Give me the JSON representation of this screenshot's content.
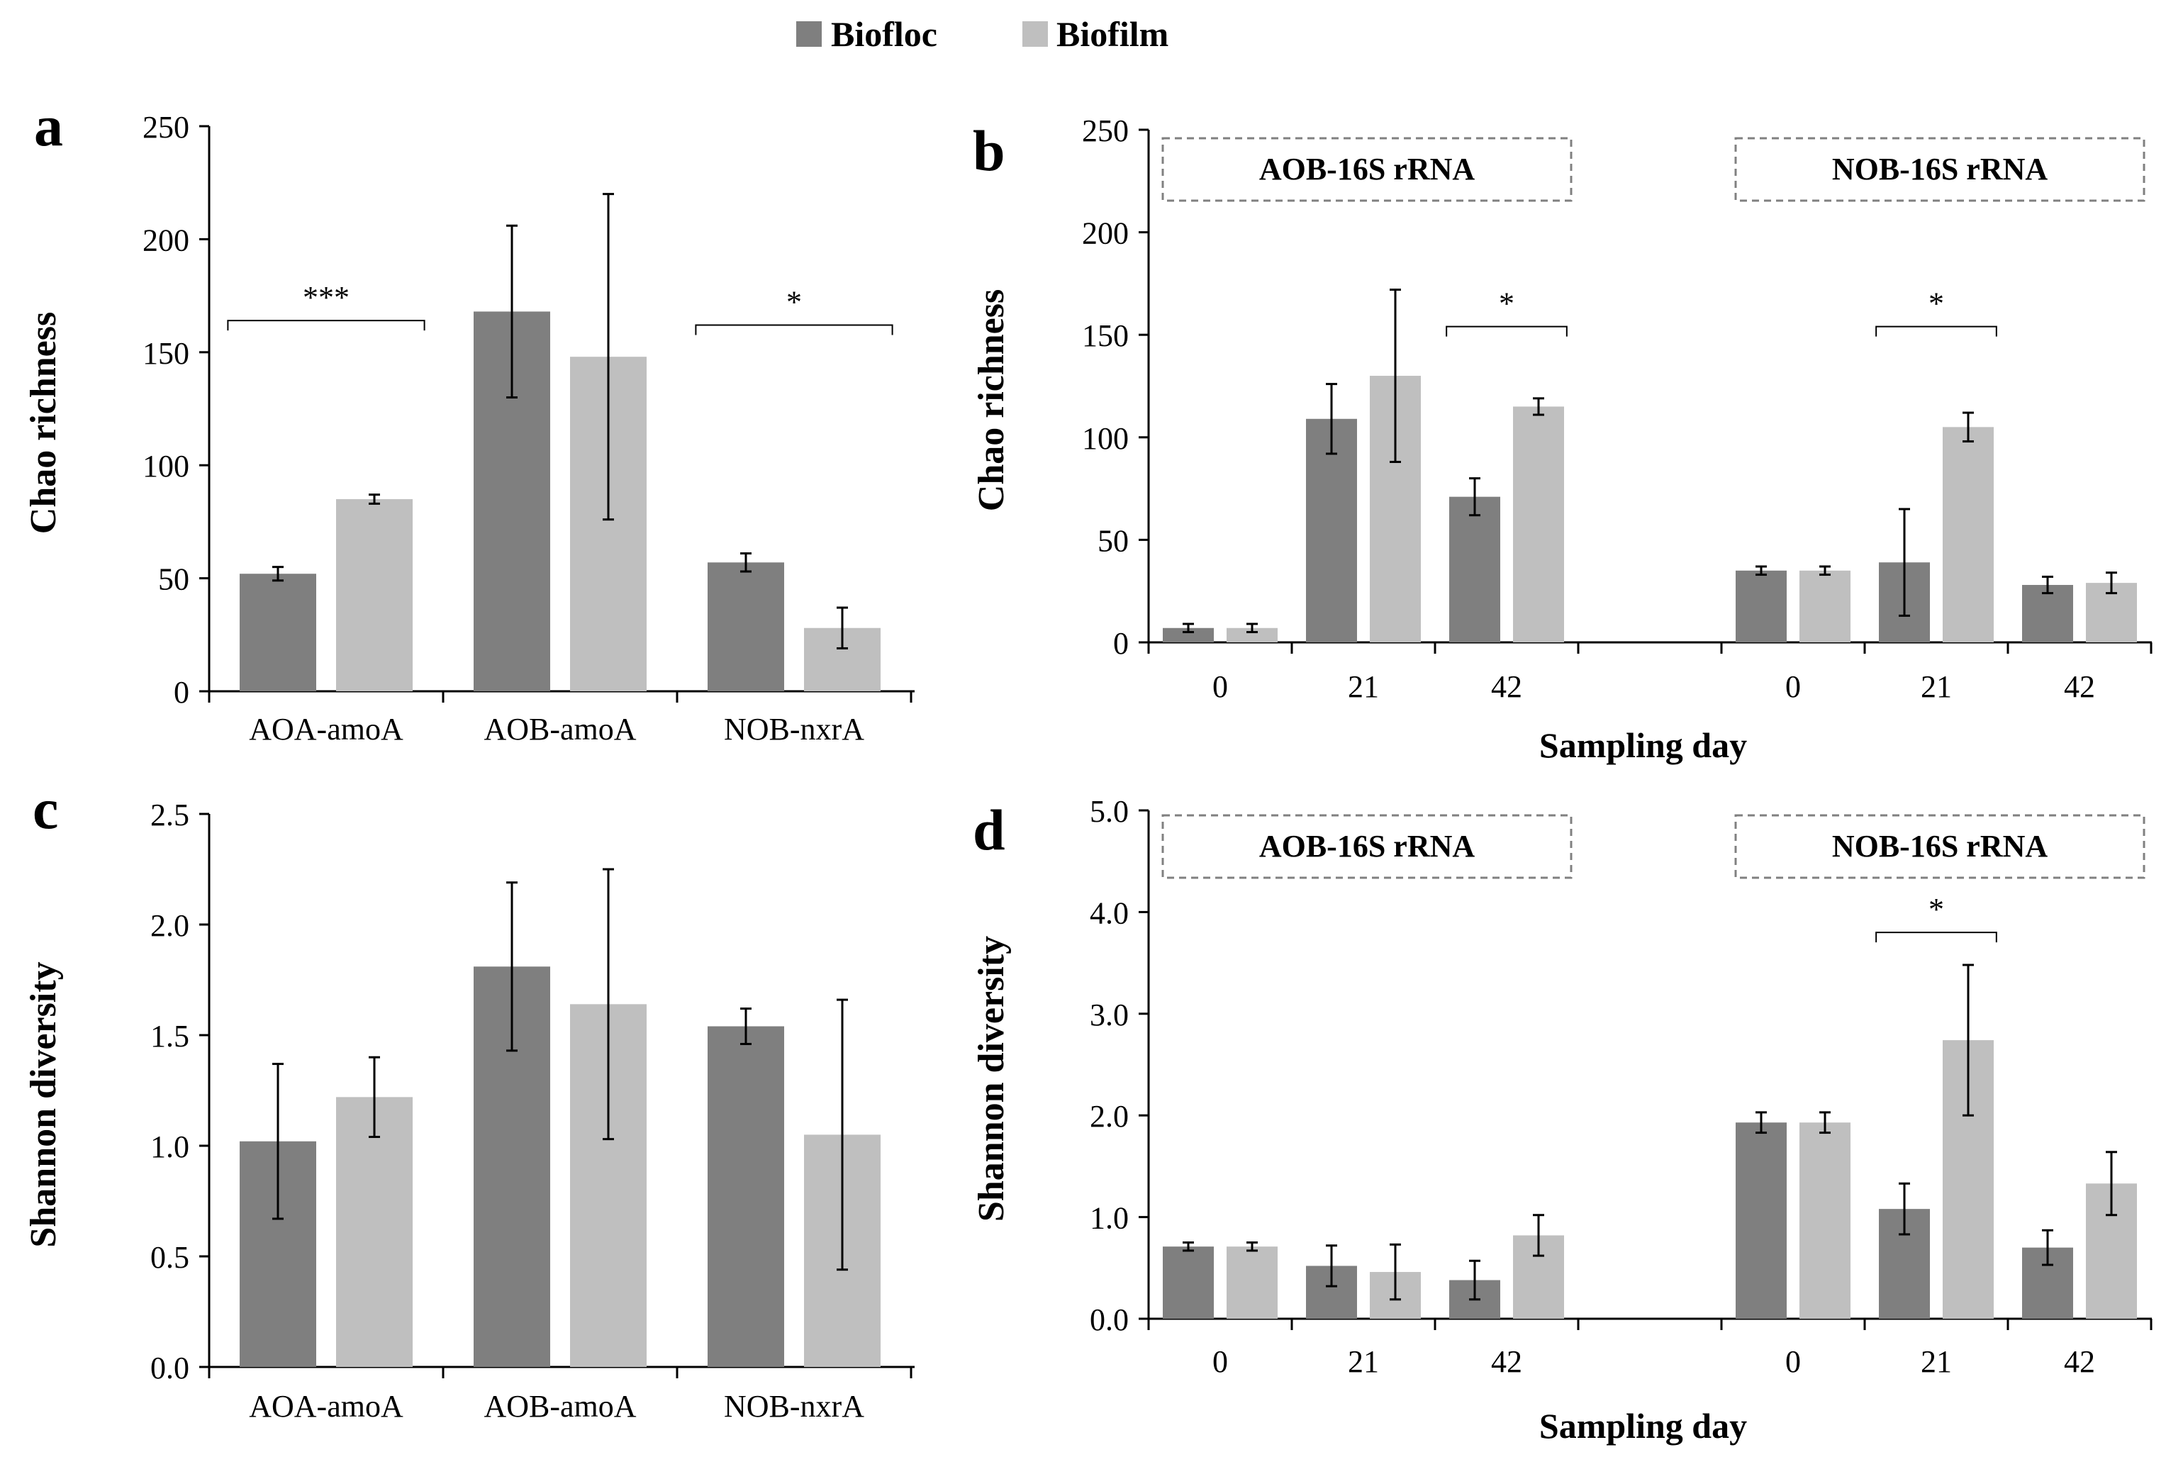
{
  "legend": {
    "items": [
      {
        "name": "Biofloc",
        "color": "#7f7f7f"
      },
      {
        "name": "Biofilm",
        "color": "#bfbfbf"
      }
    ]
  },
  "colors": {
    "biofloc": "#7f7f7f",
    "biofilm": "#bfbfbf",
    "axis": "#000000",
    "box": "#808080"
  },
  "chart_data": [
    {
      "panel": "a",
      "type": "bar",
      "ylabel": "Chao richness",
      "xlabel": "",
      "ylim": [
        0,
        250
      ],
      "yticks": [
        "0",
        "50",
        "100",
        "150",
        "200",
        "250"
      ],
      "categories": [
        "AOA-amoA",
        "AOB-amoA",
        "NOB-nxrA"
      ],
      "series": [
        {
          "name": "Biofloc",
          "values": [
            52,
            168,
            57
          ],
          "errors": [
            3,
            38,
            4
          ]
        },
        {
          "name": "Biofilm",
          "values": [
            85,
            148,
            28
          ],
          "errors": [
            2,
            72,
            9
          ]
        }
      ],
      "significance": [
        {
          "group": 0,
          "label": "***",
          "y": 164
        },
        {
          "group": 2,
          "label": "*",
          "y": 162
        }
      ]
    },
    {
      "panel": "b",
      "type": "bar",
      "ylabel": "Chao richness",
      "xlabel": "Sampling day",
      "ylim": [
        0,
        250
      ],
      "yticks": [
        "0",
        "50",
        "100",
        "150",
        "200",
        "250"
      ],
      "categories": [
        "0",
        "21",
        "42",
        "",
        "0",
        "21",
        "42"
      ],
      "series": [
        {
          "name": "Biofloc",
          "values": [
            7,
            109,
            71,
            null,
            35,
            39,
            28
          ],
          "errors": [
            2,
            17,
            9,
            null,
            2,
            26,
            4
          ]
        },
        {
          "name": "Biofilm",
          "values": [
            7,
            130,
            115,
            null,
            35,
            105,
            29
          ],
          "errors": [
            2,
            42,
            4,
            null,
            2,
            7,
            5
          ]
        }
      ],
      "group_labels": [
        {
          "label": "AOB-16S rRNA",
          "start": 0,
          "end": 2
        },
        {
          "label": "NOB-16S rRNA",
          "start": 4,
          "end": 6
        }
      ],
      "significance": [
        {
          "group": 2,
          "label": "*",
          "y": 154
        },
        {
          "group": 5,
          "label": "*",
          "y": 154
        }
      ]
    },
    {
      "panel": "c",
      "type": "bar",
      "ylabel": "Shannon diversity",
      "xlabel": "",
      "ylim": [
        0,
        2.5
      ],
      "yticks": [
        "0.0",
        "0.5",
        "1.0",
        "1.5",
        "2.0",
        "2.5"
      ],
      "categories": [
        "AOA-amoA",
        "AOB-amoA",
        "NOB-nxrA"
      ],
      "series": [
        {
          "name": "Biofloc",
          "values": [
            1.02,
            1.81,
            1.54
          ],
          "errors": [
            0.35,
            0.38,
            0.08
          ]
        },
        {
          "name": "Biofilm",
          "values": [
            1.22,
            1.64,
            1.05
          ],
          "errors": [
            0.18,
            0.61,
            0.61
          ]
        }
      ],
      "significance": []
    },
    {
      "panel": "d",
      "type": "bar",
      "ylabel": "Shannon diversity",
      "xlabel": "Sampling day",
      "ylim": [
        0,
        5.0
      ],
      "yticks": [
        "0.0",
        "1.0",
        "2.0",
        "3.0",
        "4.0",
        "5.0"
      ],
      "categories": [
        "0",
        "21",
        "42",
        "",
        "0",
        "21",
        "42"
      ],
      "series": [
        {
          "name": "Biofloc",
          "values": [
            0.71,
            0.52,
            0.38,
            null,
            1.93,
            1.08,
            0.7
          ],
          "errors": [
            0.04,
            0.2,
            0.19,
            null,
            0.1,
            0.25,
            0.17
          ]
        },
        {
          "name": "Biofilm",
          "values": [
            0.71,
            0.46,
            0.82,
            null,
            1.93,
            2.74,
            1.33
          ],
          "errors": [
            0.04,
            0.27,
            0.2,
            null,
            0.1,
            0.74,
            0.31
          ]
        }
      ],
      "group_labels": [
        {
          "label": "AOB-16S rRNA",
          "start": 0,
          "end": 2
        },
        {
          "label": "NOB-16S rRNA",
          "start": 4,
          "end": 6
        }
      ],
      "significance": [
        {
          "group": 5,
          "label": "*",
          "y": 3.8
        }
      ]
    }
  ]
}
